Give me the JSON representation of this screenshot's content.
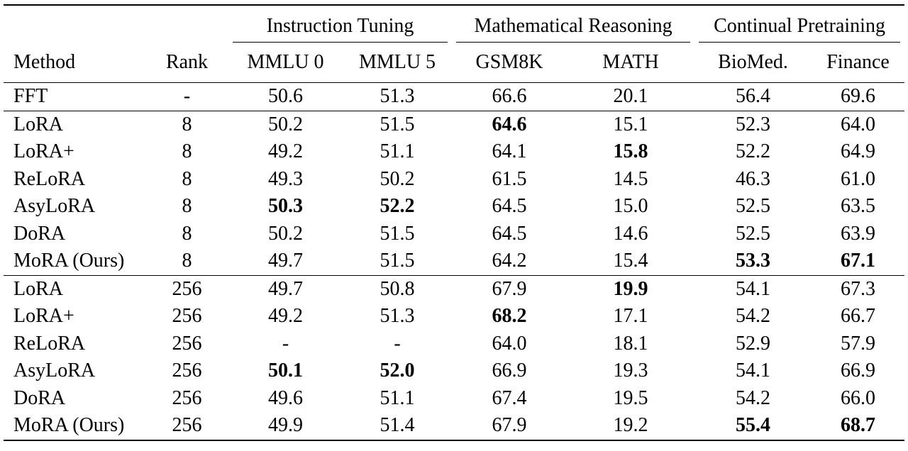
{
  "table": {
    "groups": [
      {
        "label": "Instruction Tuning"
      },
      {
        "label": "Mathematical Reasoning"
      },
      {
        "label": "Continual Pretraining"
      }
    ],
    "headers": [
      "Method",
      "Rank",
      "MMLU 0",
      "MMLU 5",
      "GSM8K",
      "MATH",
      "BioMed.",
      "Finance"
    ],
    "sections": [
      {
        "rows": [
          {
            "cells": [
              "FFT",
              "-",
              "50.6",
              "51.3",
              "66.6",
              "20.1",
              "56.4",
              "69.6"
            ],
            "bold": []
          }
        ]
      },
      {
        "rows": [
          {
            "cells": [
              "LoRA",
              "8",
              "50.2",
              "51.5",
              "64.6",
              "15.1",
              "52.3",
              "64.0"
            ],
            "bold": [
              4
            ]
          },
          {
            "cells": [
              "LoRA+",
              "8",
              "49.2",
              "51.1",
              "64.1",
              "15.8",
              "52.2",
              "64.9"
            ],
            "bold": [
              5
            ]
          },
          {
            "cells": [
              "ReLoRA",
              "8",
              "49.3",
              "50.2",
              "61.5",
              "14.5",
              "46.3",
              "61.0"
            ],
            "bold": []
          },
          {
            "cells": [
              "AsyLoRA",
              "8",
              "50.3",
              "52.2",
              "64.5",
              "15.0",
              "52.5",
              "63.5"
            ],
            "bold": [
              2,
              3
            ]
          },
          {
            "cells": [
              "DoRA",
              "8",
              "50.2",
              "51.5",
              "64.5",
              "14.6",
              "52.5",
              "63.9"
            ],
            "bold": []
          },
          {
            "cells": [
              "MoRA (Ours)",
              "8",
              "49.7",
              "51.5",
              "64.2",
              "15.4",
              "53.3",
              "67.1"
            ],
            "bold": [
              6,
              7
            ]
          }
        ]
      },
      {
        "rows": [
          {
            "cells": [
              "LoRA",
              "256",
              "49.7",
              "50.8",
              "67.9",
              "19.9",
              "54.1",
              "67.3"
            ],
            "bold": [
              5
            ]
          },
          {
            "cells": [
              "LoRA+",
              "256",
              "49.2",
              "51.3",
              "68.2",
              "17.1",
              "54.2",
              "66.7"
            ],
            "bold": [
              4
            ]
          },
          {
            "cells": [
              "ReLoRA",
              "256",
              "-",
              "-",
              "64.0",
              "18.1",
              "52.9",
              "57.9"
            ],
            "bold": []
          },
          {
            "cells": [
              "AsyLoRA",
              "256",
              "50.1",
              "52.0",
              "66.9",
              "19.3",
              "54.1",
              "66.9"
            ],
            "bold": [
              2,
              3
            ]
          },
          {
            "cells": [
              "DoRA",
              "256",
              "49.6",
              "51.1",
              "67.4",
              "19.5",
              "54.2",
              "66.0"
            ],
            "bold": []
          },
          {
            "cells": [
              "MoRA (Ours)",
              "256",
              "49.9",
              "51.4",
              "67.9",
              "19.2",
              "55.4",
              "68.7"
            ],
            "bold": [
              6,
              7
            ]
          }
        ]
      }
    ]
  }
}
